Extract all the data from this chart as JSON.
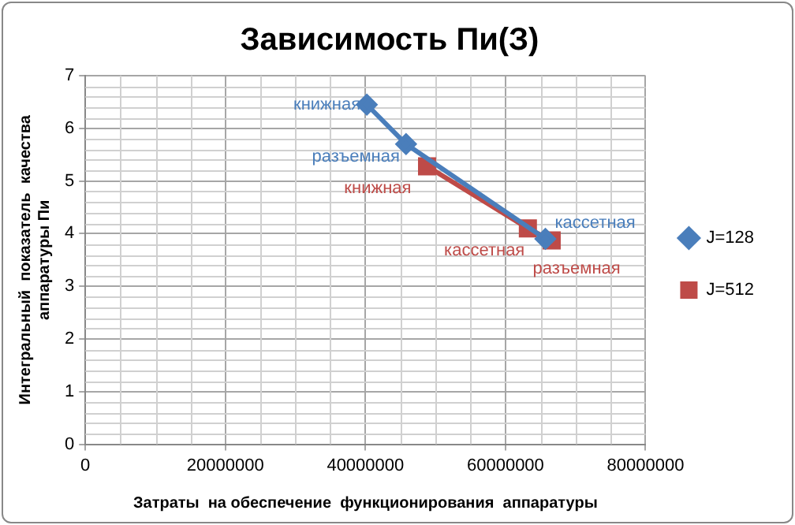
{
  "chart_data": {
    "type": "line",
    "title": "Зависимость Пи(З)",
    "xlabel": "Затраты  на обеспечение  функционирования  аппаратуры",
    "ylabel": "Интегральный  показатель  качества\nаппаратуры Пи",
    "series": [
      {
        "name": "J=128",
        "color": "#4a7ebb",
        "marker": "diamond",
        "x": [
          40200000,
          45800000,
          65700000
        ],
        "values": [
          6.45,
          5.7,
          3.9
        ]
      },
      {
        "name": "J=512",
        "color": "#be4b48",
        "marker": "square",
        "x": [
          48800000,
          63200000,
          66600000
        ],
        "values": [
          5.28,
          4.1,
          3.87
        ]
      }
    ],
    "annotations": [
      {
        "text": "книжная",
        "x": 40200000,
        "y": 6.45
      },
      {
        "text": "разъемная",
        "x": 45800000,
        "y": 5.7
      },
      {
        "text": "кассетная",
        "x": 65700000,
        "y": 3.9
      },
      {
        "text": "книжная",
        "x": 48800000,
        "y": 5.28
      },
      {
        "text": "кассетная",
        "x": 63200000,
        "y": 4.1
      },
      {
        "text": "разъемная",
        "x": 66600000,
        "y": 3.87
      }
    ],
    "xlim": [
      0,
      80000000
    ],
    "xticks": [
      0,
      20000000,
      40000000,
      60000000,
      80000000
    ],
    "ylim": [
      0,
      7
    ],
    "yticks": [
      0,
      1,
      2,
      3,
      4,
      5,
      6,
      7
    ],
    "grid": true,
    "legend": "right",
    "line_style": "solid"
  }
}
